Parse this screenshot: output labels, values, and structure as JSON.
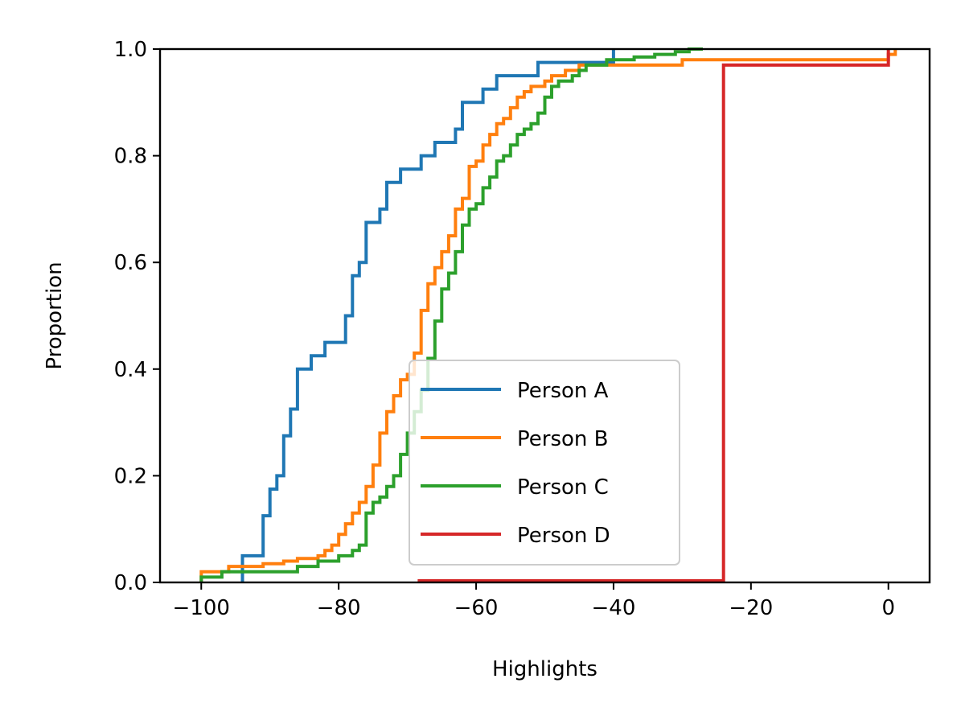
{
  "chart_data": {
    "type": "line",
    "subtype": "ecdf-step",
    "xlabel": "Highlights",
    "ylabel": "Proportion",
    "xlim": [
      -106,
      6
    ],
    "ylim": [
      0,
      1
    ],
    "xticks": [
      -100,
      -80,
      -60,
      -40,
      -20,
      0
    ],
    "xtick_labels": [
      "−100",
      "−80",
      "−60",
      "−40",
      "−20",
      "0"
    ],
    "yticks": [
      0,
      0.2,
      0.4,
      0.6,
      0.8,
      1.0
    ],
    "ytick_labels": [
      "0.0",
      "0.2",
      "0.4",
      "0.6",
      "0.8",
      "1.0"
    ],
    "grid": false,
    "legend_position": "lower-center",
    "series": [
      {
        "name": "Person A",
        "color": "#1f77b4",
        "points": [
          [
            -94,
            0
          ],
          [
            -94,
            0.05
          ],
          [
            -91,
            0.05
          ],
          [
            -91,
            0.125
          ],
          [
            -90,
            0.125
          ],
          [
            -90,
            0.175
          ],
          [
            -89,
            0.175
          ],
          [
            -89,
            0.2
          ],
          [
            -88,
            0.2
          ],
          [
            -88,
            0.275
          ],
          [
            -87,
            0.275
          ],
          [
            -87,
            0.325
          ],
          [
            -86,
            0.325
          ],
          [
            -86,
            0.4
          ],
          [
            -84,
            0.4
          ],
          [
            -84,
            0.425
          ],
          [
            -82,
            0.425
          ],
          [
            -82,
            0.45
          ],
          [
            -79,
            0.45
          ],
          [
            -79,
            0.5
          ],
          [
            -78,
            0.5
          ],
          [
            -78,
            0.575
          ],
          [
            -77,
            0.575
          ],
          [
            -77,
            0.6
          ],
          [
            -76,
            0.6
          ],
          [
            -76,
            0.675
          ],
          [
            -74,
            0.675
          ],
          [
            -74,
            0.7
          ],
          [
            -73,
            0.7
          ],
          [
            -73,
            0.75
          ],
          [
            -71,
            0.75
          ],
          [
            -71,
            0.775
          ],
          [
            -68,
            0.775
          ],
          [
            -68,
            0.8
          ],
          [
            -66,
            0.8
          ],
          [
            -66,
            0.825
          ],
          [
            -63,
            0.825
          ],
          [
            -63,
            0.85
          ],
          [
            -62,
            0.85
          ],
          [
            -62,
            0.9
          ],
          [
            -59,
            0.9
          ],
          [
            -59,
            0.925
          ],
          [
            -57,
            0.925
          ],
          [
            -57,
            0.95
          ],
          [
            -51,
            0.95
          ],
          [
            -51,
            0.975
          ],
          [
            -40,
            0.975
          ],
          [
            -40,
            1.0
          ]
        ]
      },
      {
        "name": "Person B",
        "color": "#ff7f0e",
        "points": [
          [
            -100,
            0
          ],
          [
            -100,
            0.02
          ],
          [
            -96,
            0.02
          ],
          [
            -96,
            0.03
          ],
          [
            -91,
            0.03
          ],
          [
            -91,
            0.035
          ],
          [
            -88,
            0.035
          ],
          [
            -88,
            0.04
          ],
          [
            -86,
            0.04
          ],
          [
            -86,
            0.045
          ],
          [
            -83,
            0.045
          ],
          [
            -83,
            0.05
          ],
          [
            -82,
            0.05
          ],
          [
            -82,
            0.06
          ],
          [
            -81,
            0.06
          ],
          [
            -81,
            0.07
          ],
          [
            -80,
            0.07
          ],
          [
            -80,
            0.09
          ],
          [
            -79,
            0.09
          ],
          [
            -79,
            0.11
          ],
          [
            -78,
            0.11
          ],
          [
            -78,
            0.13
          ],
          [
            -77,
            0.13
          ],
          [
            -77,
            0.15
          ],
          [
            -76,
            0.15
          ],
          [
            -76,
            0.18
          ],
          [
            -75,
            0.18
          ],
          [
            -75,
            0.22
          ],
          [
            -74,
            0.22
          ],
          [
            -74,
            0.28
          ],
          [
            -73,
            0.28
          ],
          [
            -73,
            0.32
          ],
          [
            -72,
            0.32
          ],
          [
            -72,
            0.35
          ],
          [
            -71,
            0.35
          ],
          [
            -71,
            0.38
          ],
          [
            -70,
            0.38
          ],
          [
            -70,
            0.39
          ],
          [
            -69,
            0.39
          ],
          [
            -69,
            0.43
          ],
          [
            -68,
            0.43
          ],
          [
            -68,
            0.51
          ],
          [
            -67,
            0.51
          ],
          [
            -67,
            0.56
          ],
          [
            -66,
            0.56
          ],
          [
            -66,
            0.59
          ],
          [
            -65,
            0.59
          ],
          [
            -65,
            0.62
          ],
          [
            -64,
            0.62
          ],
          [
            -64,
            0.65
          ],
          [
            -63,
            0.65
          ],
          [
            -63,
            0.7
          ],
          [
            -62,
            0.7
          ],
          [
            -62,
            0.72
          ],
          [
            -61,
            0.72
          ],
          [
            -61,
            0.78
          ],
          [
            -60,
            0.78
          ],
          [
            -60,
            0.79
          ],
          [
            -59,
            0.79
          ],
          [
            -59,
            0.82
          ],
          [
            -58,
            0.82
          ],
          [
            -58,
            0.84
          ],
          [
            -57,
            0.84
          ],
          [
            -57,
            0.86
          ],
          [
            -56,
            0.86
          ],
          [
            -56,
            0.87
          ],
          [
            -55,
            0.87
          ],
          [
            -55,
            0.89
          ],
          [
            -54,
            0.89
          ],
          [
            -54,
            0.91
          ],
          [
            -53,
            0.91
          ],
          [
            -53,
            0.92
          ],
          [
            -52,
            0.92
          ],
          [
            -52,
            0.93
          ],
          [
            -50,
            0.93
          ],
          [
            -50,
            0.94
          ],
          [
            -49,
            0.94
          ],
          [
            -49,
            0.95
          ],
          [
            -47,
            0.95
          ],
          [
            -47,
            0.96
          ],
          [
            -45,
            0.96
          ],
          [
            -45,
            0.97
          ],
          [
            -30,
            0.97
          ],
          [
            -30,
            0.98
          ],
          [
            0,
            0.98
          ],
          [
            0,
            0.99
          ],
          [
            1,
            0.99
          ],
          [
            1,
            1.0
          ]
        ]
      },
      {
        "name": "Person C",
        "color": "#2ca02c",
        "points": [
          [
            -100,
            0
          ],
          [
            -100,
            0.01
          ],
          [
            -97,
            0.01
          ],
          [
            -97,
            0.02
          ],
          [
            -86,
            0.02
          ],
          [
            -86,
            0.03
          ],
          [
            -83,
            0.03
          ],
          [
            -83,
            0.04
          ],
          [
            -80,
            0.04
          ],
          [
            -80,
            0.05
          ],
          [
            -78,
            0.05
          ],
          [
            -78,
            0.06
          ],
          [
            -77,
            0.06
          ],
          [
            -77,
            0.07
          ],
          [
            -76,
            0.07
          ],
          [
            -76,
            0.13
          ],
          [
            -75,
            0.13
          ],
          [
            -75,
            0.15
          ],
          [
            -74,
            0.15
          ],
          [
            -74,
            0.16
          ],
          [
            -73,
            0.16
          ],
          [
            -73,
            0.18
          ],
          [
            -72,
            0.18
          ],
          [
            -72,
            0.2
          ],
          [
            -71,
            0.2
          ],
          [
            -71,
            0.24
          ],
          [
            -70,
            0.24
          ],
          [
            -70,
            0.28
          ],
          [
            -69,
            0.28
          ],
          [
            -69,
            0.32
          ],
          [
            -68,
            0.32
          ],
          [
            -68,
            0.36
          ],
          [
            -67,
            0.36
          ],
          [
            -67,
            0.42
          ],
          [
            -66,
            0.42
          ],
          [
            -66,
            0.49
          ],
          [
            -65,
            0.49
          ],
          [
            -65,
            0.55
          ],
          [
            -64,
            0.55
          ],
          [
            -64,
            0.58
          ],
          [
            -63,
            0.58
          ],
          [
            -63,
            0.62
          ],
          [
            -62,
            0.62
          ],
          [
            -62,
            0.67
          ],
          [
            -61,
            0.67
          ],
          [
            -61,
            0.7
          ],
          [
            -60,
            0.7
          ],
          [
            -60,
            0.71
          ],
          [
            -59,
            0.71
          ],
          [
            -59,
            0.74
          ],
          [
            -58,
            0.74
          ],
          [
            -58,
            0.76
          ],
          [
            -57,
            0.76
          ],
          [
            -57,
            0.79
          ],
          [
            -56,
            0.79
          ],
          [
            -56,
            0.8
          ],
          [
            -55,
            0.8
          ],
          [
            -55,
            0.82
          ],
          [
            -54,
            0.82
          ],
          [
            -54,
            0.84
          ],
          [
            -53,
            0.84
          ],
          [
            -53,
            0.85
          ],
          [
            -52,
            0.85
          ],
          [
            -52,
            0.86
          ],
          [
            -51,
            0.86
          ],
          [
            -51,
            0.88
          ],
          [
            -50,
            0.88
          ],
          [
            -50,
            0.91
          ],
          [
            -49,
            0.91
          ],
          [
            -49,
            0.93
          ],
          [
            -48,
            0.93
          ],
          [
            -48,
            0.94
          ],
          [
            -46,
            0.94
          ],
          [
            -46,
            0.95
          ],
          [
            -45,
            0.95
          ],
          [
            -45,
            0.96
          ],
          [
            -44,
            0.96
          ],
          [
            -44,
            0.97
          ],
          [
            -41,
            0.97
          ],
          [
            -41,
            0.98
          ],
          [
            -37,
            0.98
          ],
          [
            -37,
            0.985
          ],
          [
            -34,
            0.985
          ],
          [
            -34,
            0.99
          ],
          [
            -31,
            0.99
          ],
          [
            -31,
            0.995
          ],
          [
            -29,
            0.995
          ],
          [
            -29,
            1.0
          ],
          [
            -27,
            1.0
          ]
        ]
      },
      {
        "name": "Person D",
        "color": "#d62728",
        "points": [
          [
            -68.5,
            0.003
          ],
          [
            -24,
            0.003
          ],
          [
            -24,
            0.97
          ],
          [
            0,
            0.97
          ],
          [
            0,
            1.0
          ]
        ]
      }
    ]
  }
}
